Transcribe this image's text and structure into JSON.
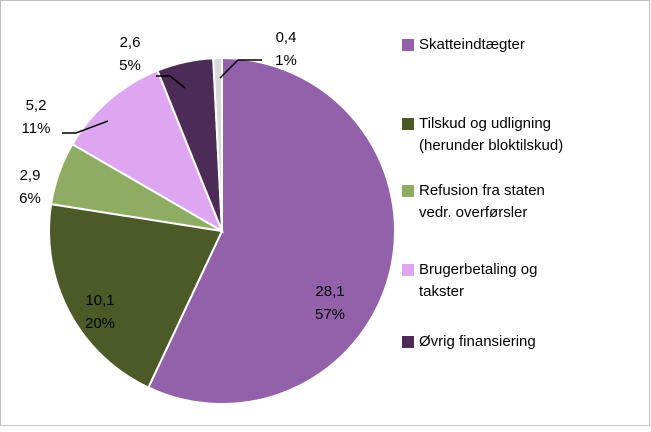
{
  "chart_data": {
    "type": "pie",
    "categories": [
      [
        "Skatteindtægter"
      ],
      [
        "Tilskud og udligning",
        "(herunder bloktilskud)"
      ],
      [
        "Refusion fra staten",
        "vedr. overførsler"
      ],
      [
        "Brugerbetaling og",
        "takster"
      ],
      [
        "Øvrig finansiering"
      ],
      null
    ],
    "values": [
      28.1,
      10.1,
      2.9,
      5.2,
      2.6,
      0.4
    ],
    "value_labels": [
      "28,1",
      "10,1",
      "2,9",
      "5,2",
      "2,6",
      "0,4"
    ],
    "percents": [
      57,
      20,
      6,
      11,
      5,
      1
    ],
    "percent_labels": [
      "57%",
      "20%",
      "6%",
      "11%",
      "5%",
      "1%"
    ],
    "colors": [
      "#9361a9",
      "#4b5a26",
      "#8fac63",
      "#dea6f1",
      "#4c2b57",
      "#d9d9d9"
    ],
    "legend": "right"
  }
}
